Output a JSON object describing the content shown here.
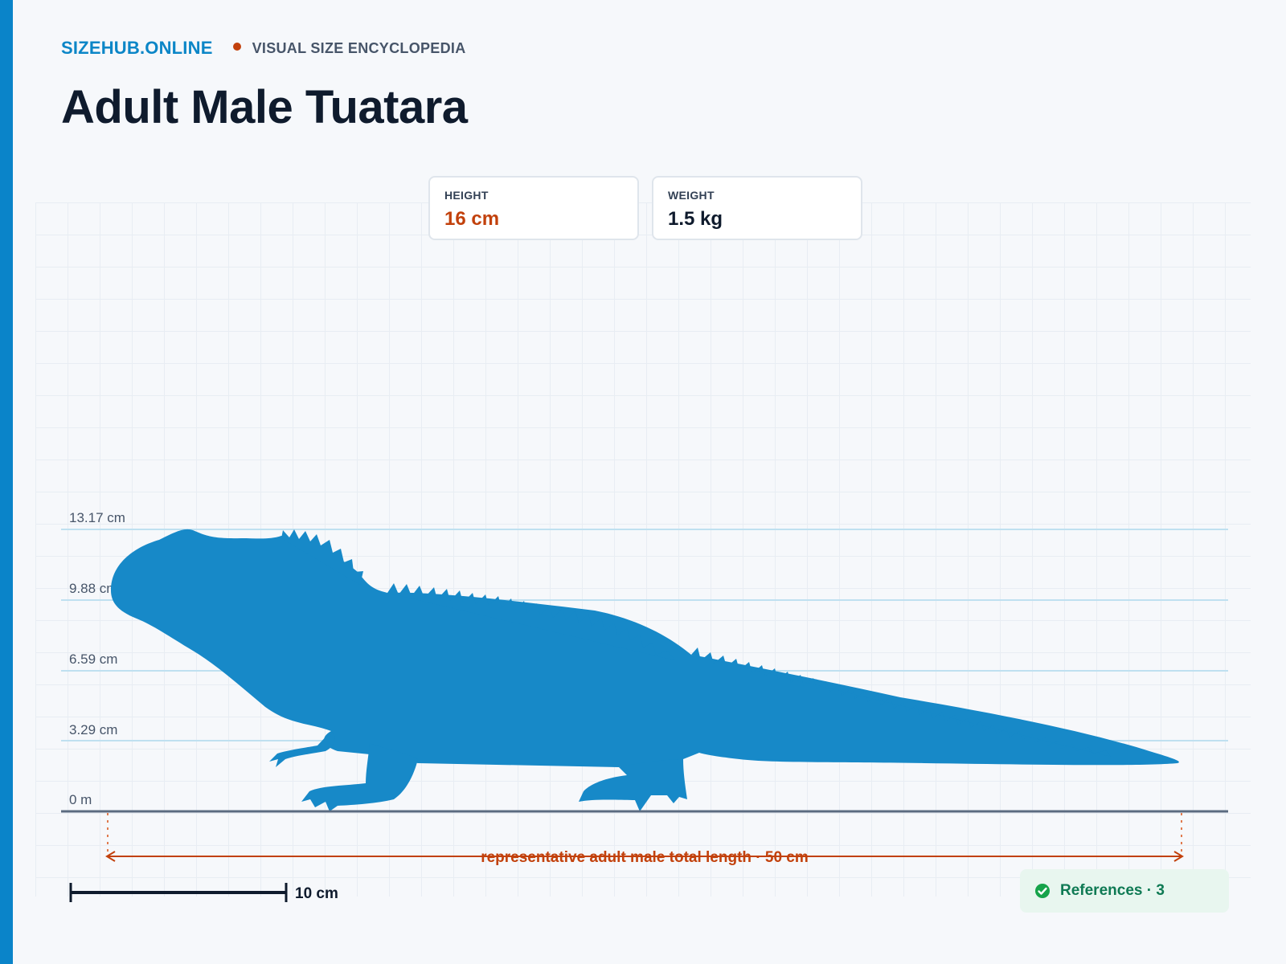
{
  "header": {
    "brand": "SIZEHUB.ONLINE",
    "tagline": "VISUAL SIZE ENCYCLOPEDIA",
    "title": "Adult Male Tuatara"
  },
  "stats": {
    "height": {
      "label": "HEIGHT",
      "value": "16 cm"
    },
    "weight": {
      "label": "WEIGHT",
      "value": "1.5 kg"
    }
  },
  "figure": {
    "height_ticks": [
      "13.17 cm",
      "9.88 cm",
      "6.59 cm",
      "3.29 cm",
      "0 m"
    ],
    "length_label": "representative adult male total length · 50 cm",
    "scale_bar_label": "10 cm",
    "silhouette_icon": "tuatara-silhouette"
  },
  "references": {
    "label": "References · 3",
    "icon": "check-circle-icon"
  },
  "colors": {
    "accent": "#0a84c9",
    "highlight": "#c2410c",
    "silhouette": "#1789c8",
    "success": "#0f7a54"
  }
}
